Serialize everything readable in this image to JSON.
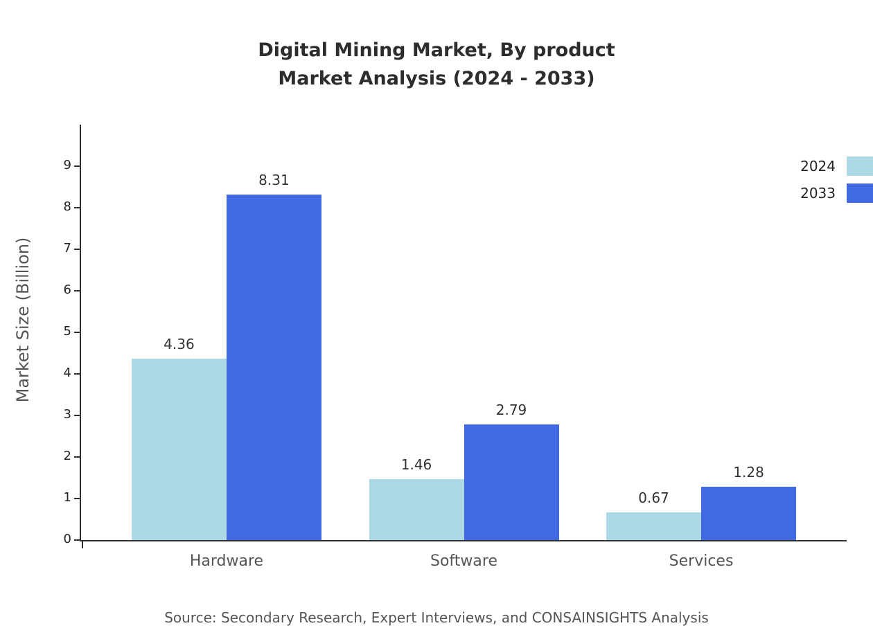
{
  "title": {
    "line1": "Digital Mining Market, By product",
    "line2": "Market Analysis (2024 - 2033)"
  },
  "source": "Source: Secondary Research, Expert Interviews, and CONSAINSIGHTS Analysis",
  "chart_data": {
    "type": "bar",
    "title": "Digital Mining Market, By product Market Analysis (2024 - 2033)",
    "categories": [
      "Hardware",
      "Software",
      "Services"
    ],
    "series": [
      {
        "name": "2024",
        "color": "#ADD8E6",
        "values": [
          4.36,
          1.46,
          0.67
        ]
      },
      {
        "name": "2033",
        "color": "#4169E1",
        "values": [
          8.31,
          2.79,
          1.28
        ]
      }
    ],
    "xlabel": "",
    "ylabel": "Market Size (Billion)",
    "ylim": [
      0,
      10
    ],
    "yticks": [
      0,
      1,
      2,
      3,
      4,
      5,
      6,
      7,
      8,
      9
    ],
    "grid": false,
    "legend_position": "top-right"
  }
}
